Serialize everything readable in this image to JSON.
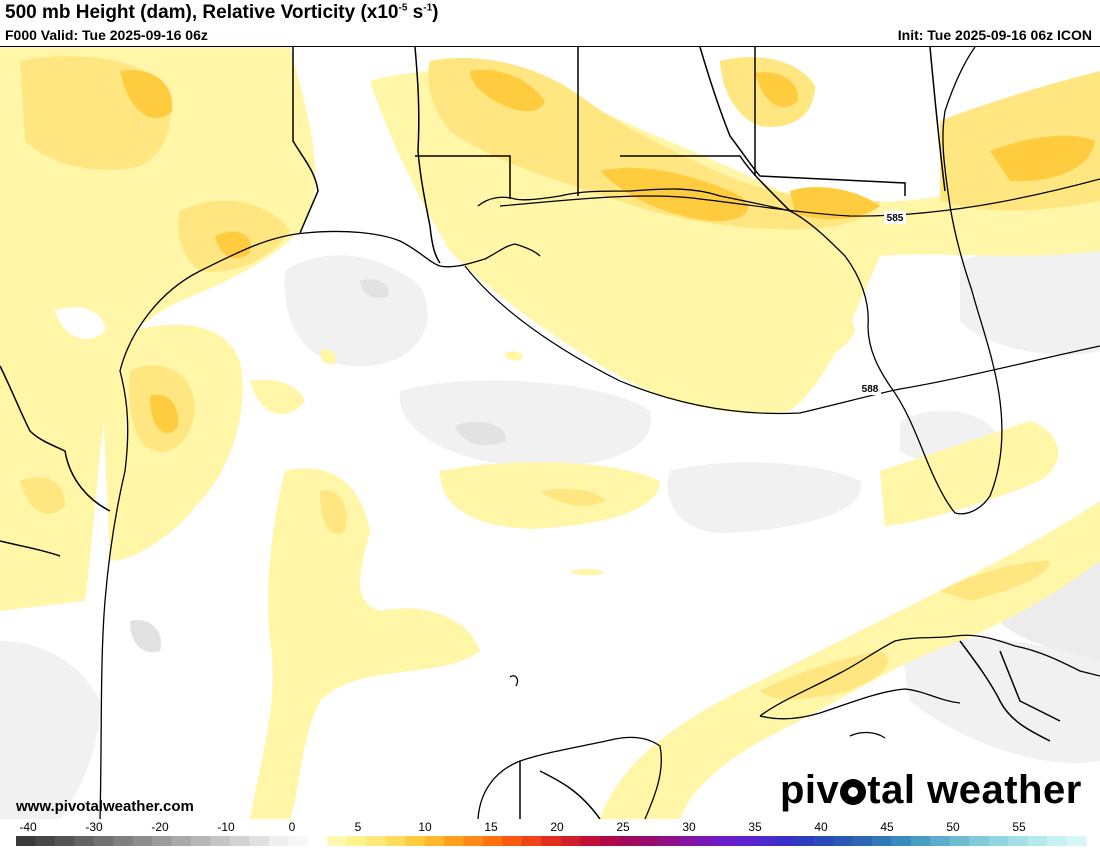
{
  "header": {
    "title_main": "500 mb Height (dam), Relative Vorticity (x10",
    "title_exp1": "-5",
    "title_mid": " s",
    "title_exp2": "-1",
    "title_end": ")",
    "valid": "F000 Valid: Tue 2025-09-16 06z",
    "init": "Init: Tue 2025-09-16 06z ICON"
  },
  "contours": [
    {
      "label": "585"
    },
    {
      "label": "588"
    }
  ],
  "branding": {
    "url": "www.pivotalweather.com",
    "logo_left": "piv",
    "logo_right": "tal weather"
  },
  "colorbar": {
    "ticks": [
      "-40",
      "-30",
      "-20",
      "-10",
      "0",
      "5",
      "10",
      "15",
      "20",
      "25",
      "30",
      "35",
      "40",
      "45",
      "50",
      "55"
    ],
    "colors": [
      "#3a3a3a",
      "#474747",
      "#555555",
      "#636363",
      "#717171",
      "#7f7f7f",
      "#8d8d8d",
      "#9b9b9b",
      "#a9a9a9",
      "#b7b7b7",
      "#c5c5c5",
      "#d3d3d3",
      "#e1e1e1",
      "#efefef",
      "#f7f7f7",
      "#ffffff",
      "#fff9b0",
      "#fff38c",
      "#ffe97a",
      "#ffdc5e",
      "#ffcc40",
      "#ffb830",
      "#ffa020",
      "#ff8a18",
      "#ff7010",
      "#f85a10",
      "#ee4416",
      "#e0301c",
      "#d01f2a",
      "#c01038",
      "#b00848",
      "#a00a5a",
      "#980c70",
      "#901088",
      "#8414a0",
      "#7818b8",
      "#6c1cc8",
      "#5e22d0",
      "#4c2ad0",
      "#3a30c8",
      "#2e3cc0",
      "#2a4ab8",
      "#2a58b4",
      "#2c66b4",
      "#3278b8",
      "#3a8abd",
      "#4a9cc4",
      "#5cadcb",
      "#6ebcd2",
      "#80cad9",
      "#92d6e0",
      "#a4e0e7",
      "#b6e9ee",
      "#c8f1f4",
      "#d6f6f8"
    ]
  },
  "colors": {
    "vort_light": "#fff6a8",
    "vort_mid": "#ffe680",
    "vort_high": "#ffcc40",
    "neg_light": "#f1f1f1",
    "neg_mid": "#e2e2e2",
    "coast": "#000000"
  }
}
